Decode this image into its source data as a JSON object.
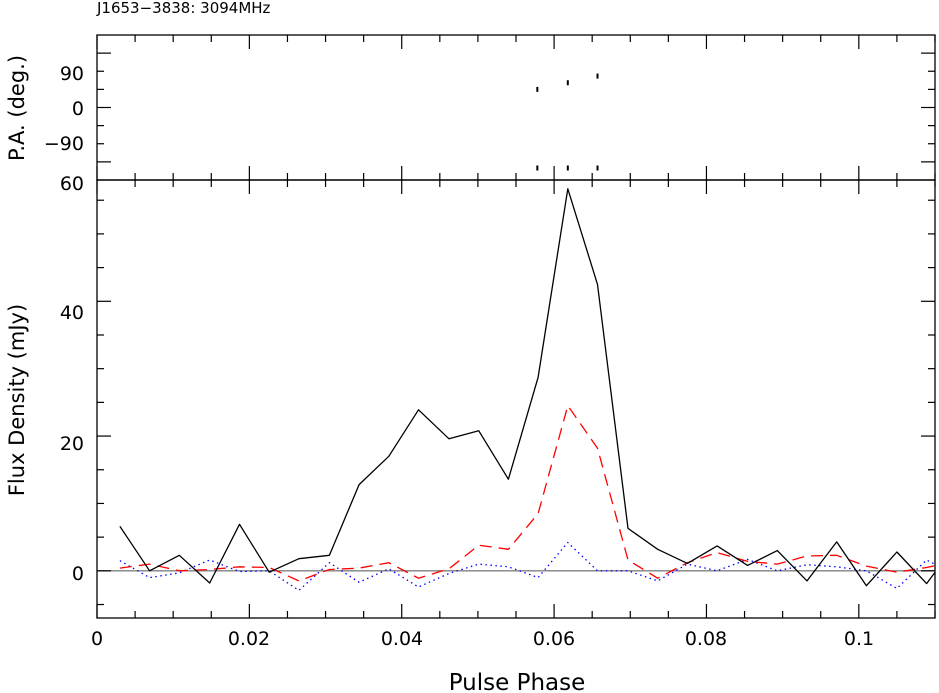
{
  "chart_data": [
    {
      "type": "scatter",
      "title": "J1653−3838: 3094MHz",
      "ylabel": "P.A. (deg.)",
      "xlim": [
        0,
        0.11
      ],
      "ylim": [
        -120,
        120
      ],
      "yticks": [
        90,
        0,
        -90
      ],
      "ytick_labels": [
        "90",
        "0",
        "−90"
      ],
      "series": [
        {
          "x": [
            0.0578,
            0.0578,
            0.0618,
            0.0618,
            0.0657,
            0.0657
          ],
          "y": [
            30,
            -150,
            41,
            -139,
            52,
            -128
          ]
        }
      ]
    },
    {
      "type": "line",
      "xlabel": "Pulse Phase",
      "ylabel": "Flux Density (mJy)",
      "xlim": [
        0,
        0.11
      ],
      "ylim": [
        -7,
        58
      ],
      "xticks": [
        0,
        0.02,
        0.04,
        0.06,
        0.08,
        0.1
      ],
      "xtick_labels": [
        "0",
        "0.02",
        "0.04",
        "0.06",
        "0.08",
        "0.1"
      ],
      "yticks": [
        0,
        20,
        40,
        60
      ],
      "ytick_labels": [
        "0",
        "20",
        "40",
        "60"
      ],
      "x": [
        0.003,
        0.0069,
        0.0108,
        0.0148,
        0.0187,
        0.0226,
        0.0265,
        0.0305,
        0.0344,
        0.0383,
        0.0422,
        0.0462,
        0.0501,
        0.054,
        0.0579,
        0.0618,
        0.0657,
        0.0697,
        0.0736,
        0.0775,
        0.0814,
        0.0854,
        0.0893,
        0.0932,
        0.0971,
        0.101,
        0.105,
        0.1089,
        0.111
      ],
      "series": [
        {
          "style": "solid",
          "values": [
            6.6,
            0.0,
            2.3,
            -1.8,
            6.9,
            -0.2,
            1.8,
            2.3,
            12.8,
            17.0,
            23.9,
            19.6,
            20.8,
            13.6,
            28.7,
            56.7,
            42.5,
            6.3,
            3.2,
            1.1,
            3.7,
            0.8,
            3.0,
            -1.5,
            4.3,
            -2.2,
            2.8,
            -1.9,
            1.3
          ],
          "color": "#000000"
        },
        {
          "style": "dashed",
          "values": [
            0.4,
            1.0,
            0.0,
            0.2,
            0.6,
            0.5,
            -1.5,
            0.2,
            0.4,
            1.2,
            -1.1,
            0.3,
            3.8,
            3.2,
            8.5,
            24.5,
            18.2,
            1.6,
            -1.1,
            1.2,
            2.7,
            1.4,
            1.0,
            2.2,
            2.3,
            0.7,
            -0.2,
            0.5,
            1.0
          ],
          "color": "#ff0000"
        },
        {
          "style": "dotted",
          "values": [
            1.5,
            -1.0,
            -0.3,
            1.6,
            -0.1,
            0.0,
            -2.9,
            1.2,
            -1.7,
            0.3,
            -2.4,
            -0.4,
            1.0,
            0.6,
            -1.0,
            4.2,
            0.0,
            0.0,
            -1.5,
            1.0,
            0.0,
            1.7,
            0.0,
            0.9,
            0.6,
            0.0,
            -2.6,
            1.6,
            0.4
          ],
          "color": "#0000ff"
        }
      ],
      "baseline": 0,
      "baseline_color": "#808080"
    }
  ]
}
